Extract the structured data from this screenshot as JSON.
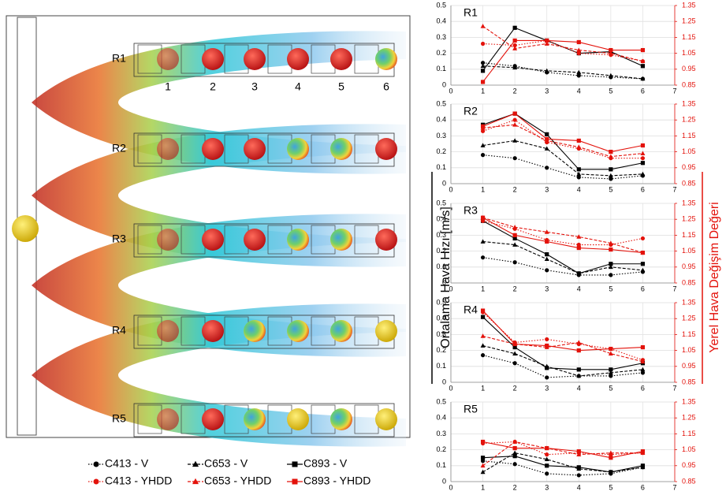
{
  "image": {
    "row_labels": [
      "R1",
      "R2",
      "R3",
      "R4",
      "R5"
    ],
    "column_labels": [
      "1",
      "2",
      "3",
      "4",
      "5",
      "6"
    ]
  },
  "y_axis_title": "Ortalama Hava Hızı [m/s]",
  "y2_axis_title": "Yerel Hava Değişim Değeri",
  "legend": [
    {
      "name": "C413 - V",
      "color": "#000000",
      "marker": "circle",
      "dash": "dotted"
    },
    {
      "name": "C653 - V",
      "color": "#000000",
      "marker": "triangle",
      "dash": "dashed"
    },
    {
      "name": "C893 - V",
      "color": "#000000",
      "marker": "square",
      "dash": "solid"
    },
    {
      "name": "C413 - YHDD",
      "color": "#e3120b",
      "marker": "circle",
      "dash": "dotted"
    },
    {
      "name": "C653 - YHDD",
      "color": "#e3120b",
      "marker": "triangle",
      "dash": "dashed"
    },
    {
      "name": "C893 - YHDD",
      "color": "#e3120b",
      "marker": "square",
      "dash": "solid"
    }
  ],
  "chart_data": [
    {
      "type": "line",
      "title": "R1",
      "x": [
        1,
        2,
        3,
        4,
        5,
        6
      ],
      "xlim": [
        0,
        7
      ],
      "xticks": [
        0,
        1,
        2,
        3,
        4,
        5,
        6,
        7
      ],
      "ylim": [
        0,
        0.5
      ],
      "yticks": [
        0,
        0.1,
        0.2,
        0.3,
        0.4,
        0.5
      ],
      "y2lim": [
        0.85,
        1.35
      ],
      "y2ticks": [
        0.85,
        0.95,
        1.05,
        1.15,
        1.25,
        1.35
      ],
      "grid": true,
      "series": [
        {
          "values": [
            0.14,
            0.12,
            0.08,
            0.06,
            0.05,
            0.04
          ]
        },
        {
          "values": [
            0.12,
            0.11,
            0.09,
            0.08,
            0.06,
            0.04
          ]
        },
        {
          "values": [
            0.09,
            0.36,
            0.28,
            0.2,
            0.21,
            0.12
          ]
        },
        {
          "axis": "y2",
          "values": [
            1.11,
            1.1,
            1.13,
            1.05,
            1.04,
            1.0
          ]
        },
        {
          "axis": "y2",
          "values": [
            1.22,
            1.08,
            1.11,
            1.07,
            1.05,
            1.0
          ]
        },
        {
          "axis": "y2",
          "values": [
            0.87,
            1.13,
            1.13,
            1.12,
            1.07,
            1.07
          ]
        }
      ]
    },
    {
      "type": "line",
      "title": "R2",
      "x": [
        1,
        2,
        3,
        4,
        5,
        6
      ],
      "xlim": [
        0,
        7
      ],
      "xticks": [
        0,
        1,
        2,
        3,
        4,
        5,
        6,
        7
      ],
      "ylim": [
        0,
        0.5
      ],
      "yticks": [
        0,
        0.1,
        0.2,
        0.3,
        0.4,
        0.5
      ],
      "y2lim": [
        0.85,
        1.35
      ],
      "y2ticks": [
        0.85,
        0.95,
        1.05,
        1.15,
        1.25,
        1.35
      ],
      "grid": true,
      "series": [
        {
          "values": [
            0.18,
            0.16,
            0.1,
            0.04,
            0.03,
            0.05
          ]
        },
        {
          "values": [
            0.24,
            0.27,
            0.22,
            0.06,
            0.05,
            0.06
          ]
        },
        {
          "values": [
            0.37,
            0.44,
            0.31,
            0.09,
            0.09,
            0.13
          ]
        },
        {
          "axis": "y2",
          "values": [
            1.18,
            1.25,
            1.11,
            1.07,
            1.01,
            1.01
          ]
        },
        {
          "axis": "y2",
          "values": [
            1.2,
            1.22,
            1.12,
            1.08,
            1.02,
            1.04
          ]
        },
        {
          "axis": "y2",
          "values": [
            1.21,
            1.29,
            1.13,
            1.12,
            1.05,
            1.09
          ]
        }
      ]
    },
    {
      "type": "line",
      "title": "R3",
      "x": [
        1,
        2,
        3,
        4,
        5,
        6
      ],
      "xlim": [
        0,
        7
      ],
      "xticks": [
        0,
        1,
        2,
        3,
        4,
        5,
        6,
        7
      ],
      "ylim": [
        0,
        0.5
      ],
      "yticks": [
        0,
        0.1,
        0.2,
        0.3,
        0.4,
        0.5
      ],
      "y2lim": [
        0.85,
        1.35
      ],
      "y2ticks": [
        0.85,
        0.95,
        1.05,
        1.15,
        1.25,
        1.35
      ],
      "grid": true,
      "series": [
        {
          "values": [
            0.16,
            0.13,
            0.08,
            0.05,
            0.05,
            0.07
          ]
        },
        {
          "values": [
            0.26,
            0.24,
            0.15,
            0.06,
            0.1,
            0.08
          ]
        },
        {
          "values": [
            0.39,
            0.28,
            0.18,
            0.06,
            0.12,
            0.12
          ]
        },
        {
          "axis": "y2",
          "values": [
            1.24,
            1.19,
            1.12,
            1.09,
            1.09,
            1.13
          ]
        },
        {
          "axis": "y2",
          "values": [
            1.26,
            1.2,
            1.17,
            1.14,
            1.1,
            1.04
          ]
        },
        {
          "axis": "y2",
          "values": [
            1.26,
            1.15,
            1.11,
            1.07,
            1.06,
            1.04
          ]
        }
      ]
    },
    {
      "type": "line",
      "title": "R4",
      "x": [
        1,
        2,
        3,
        4,
        5,
        6
      ],
      "xlim": [
        0,
        7
      ],
      "xticks": [
        0,
        1,
        2,
        3,
        4,
        5,
        6,
        7
      ],
      "ylim": [
        0,
        0.5
      ],
      "yticks": [
        0,
        0.1,
        0.2,
        0.3,
        0.4,
        0.5
      ],
      "y2lim": [
        0.85,
        1.35
      ],
      "y2ticks": [
        0.85,
        0.95,
        1.05,
        1.15,
        1.25,
        1.35
      ],
      "grid": true,
      "series": [
        {
          "values": [
            0.17,
            0.12,
            0.03,
            0.04,
            0.04,
            0.06
          ]
        },
        {
          "values": [
            0.23,
            0.18,
            0.1,
            0.04,
            0.06,
            0.08
          ]
        },
        {
          "values": [
            0.41,
            0.22,
            0.09,
            0.08,
            0.08,
            0.12
          ]
        },
        {
          "axis": "y2",
          "values": [
            1.29,
            1.1,
            1.12,
            1.09,
            1.06,
            0.99
          ]
        },
        {
          "axis": "y2",
          "values": [
            1.14,
            1.09,
            1.07,
            1.1,
            1.03,
            0.98
          ]
        },
        {
          "axis": "y2",
          "values": [
            1.3,
            1.09,
            1.08,
            1.05,
            1.06,
            1.07
          ]
        }
      ]
    },
    {
      "type": "line",
      "title": "R5",
      "x": [
        1,
        2,
        3,
        4,
        5,
        6
      ],
      "xlim": [
        0,
        7
      ],
      "xticks": [
        0,
        1,
        2,
        3,
        4,
        5,
        6,
        7
      ],
      "ylim": [
        0,
        0.5
      ],
      "yticks": [
        0,
        0.1,
        0.2,
        0.3,
        0.4,
        0.5
      ],
      "y2lim": [
        0.85,
        1.35
      ],
      "y2ticks": [
        0.85,
        0.95,
        1.05,
        1.15,
        1.25,
        1.35
      ],
      "grid": true,
      "series": [
        {
          "values": [
            0.13,
            0.11,
            0.05,
            0.04,
            0.05,
            0.09
          ]
        },
        {
          "values": [
            0.06,
            0.18,
            0.14,
            0.08,
            0.06,
            0.09
          ]
        },
        {
          "values": [
            0.15,
            0.16,
            0.1,
            0.09,
            0.06,
            0.1
          ]
        },
        {
          "axis": "y2",
          "values": [
            1.09,
            1.1,
            1.02,
            1.03,
            1.02,
            1.03
          ]
        },
        {
          "axis": "y2",
          "values": [
            0.95,
            1.1,
            1.06,
            1.02,
            1.03,
            1.03
          ]
        },
        {
          "axis": "y2",
          "values": [
            1.1,
            1.06,
            1.06,
            1.04,
            1.0,
            1.04
          ]
        }
      ]
    }
  ]
}
